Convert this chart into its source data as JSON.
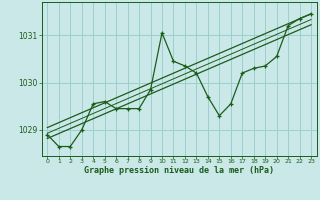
{
  "xlabel": "Graphe pression niveau de la mer (hPa)",
  "background_color": "#cbe8e8",
  "line_color": "#1a5c1a",
  "grid_color": "#9dcfcf",
  "xlim": [
    -0.5,
    23.5
  ],
  "ylim": [
    1028.45,
    1031.7
  ],
  "yticks": [
    1029,
    1030,
    1031
  ],
  "xticks": [
    0,
    1,
    2,
    3,
    4,
    5,
    6,
    7,
    8,
    9,
    10,
    11,
    12,
    13,
    14,
    15,
    16,
    17,
    18,
    19,
    20,
    21,
    22,
    23
  ],
  "pressure_x": [
    0,
    1,
    2,
    3,
    4,
    5,
    6,
    7,
    8,
    9,
    10,
    11,
    12,
    13,
    14,
    15,
    16,
    17,
    18,
    19,
    20,
    21,
    22,
    23
  ],
  "pressure_y": [
    1028.9,
    1028.65,
    1028.65,
    1029.0,
    1029.55,
    1029.6,
    1029.45,
    1029.45,
    1029.45,
    1029.85,
    1031.05,
    1030.45,
    1030.35,
    1030.2,
    1029.7,
    1029.3,
    1029.55,
    1030.2,
    1030.3,
    1030.35,
    1030.55,
    1031.2,
    1031.35,
    1031.45
  ],
  "trend1_x": [
    0,
    23
  ],
  "trend1_y": [
    1029.05,
    1031.45
  ],
  "trend2_x": [
    0,
    23
  ],
  "trend2_y": [
    1028.82,
    1031.22
  ],
  "trend3_x": [
    0,
    23
  ],
  "trend3_y": [
    1028.93,
    1031.33
  ]
}
